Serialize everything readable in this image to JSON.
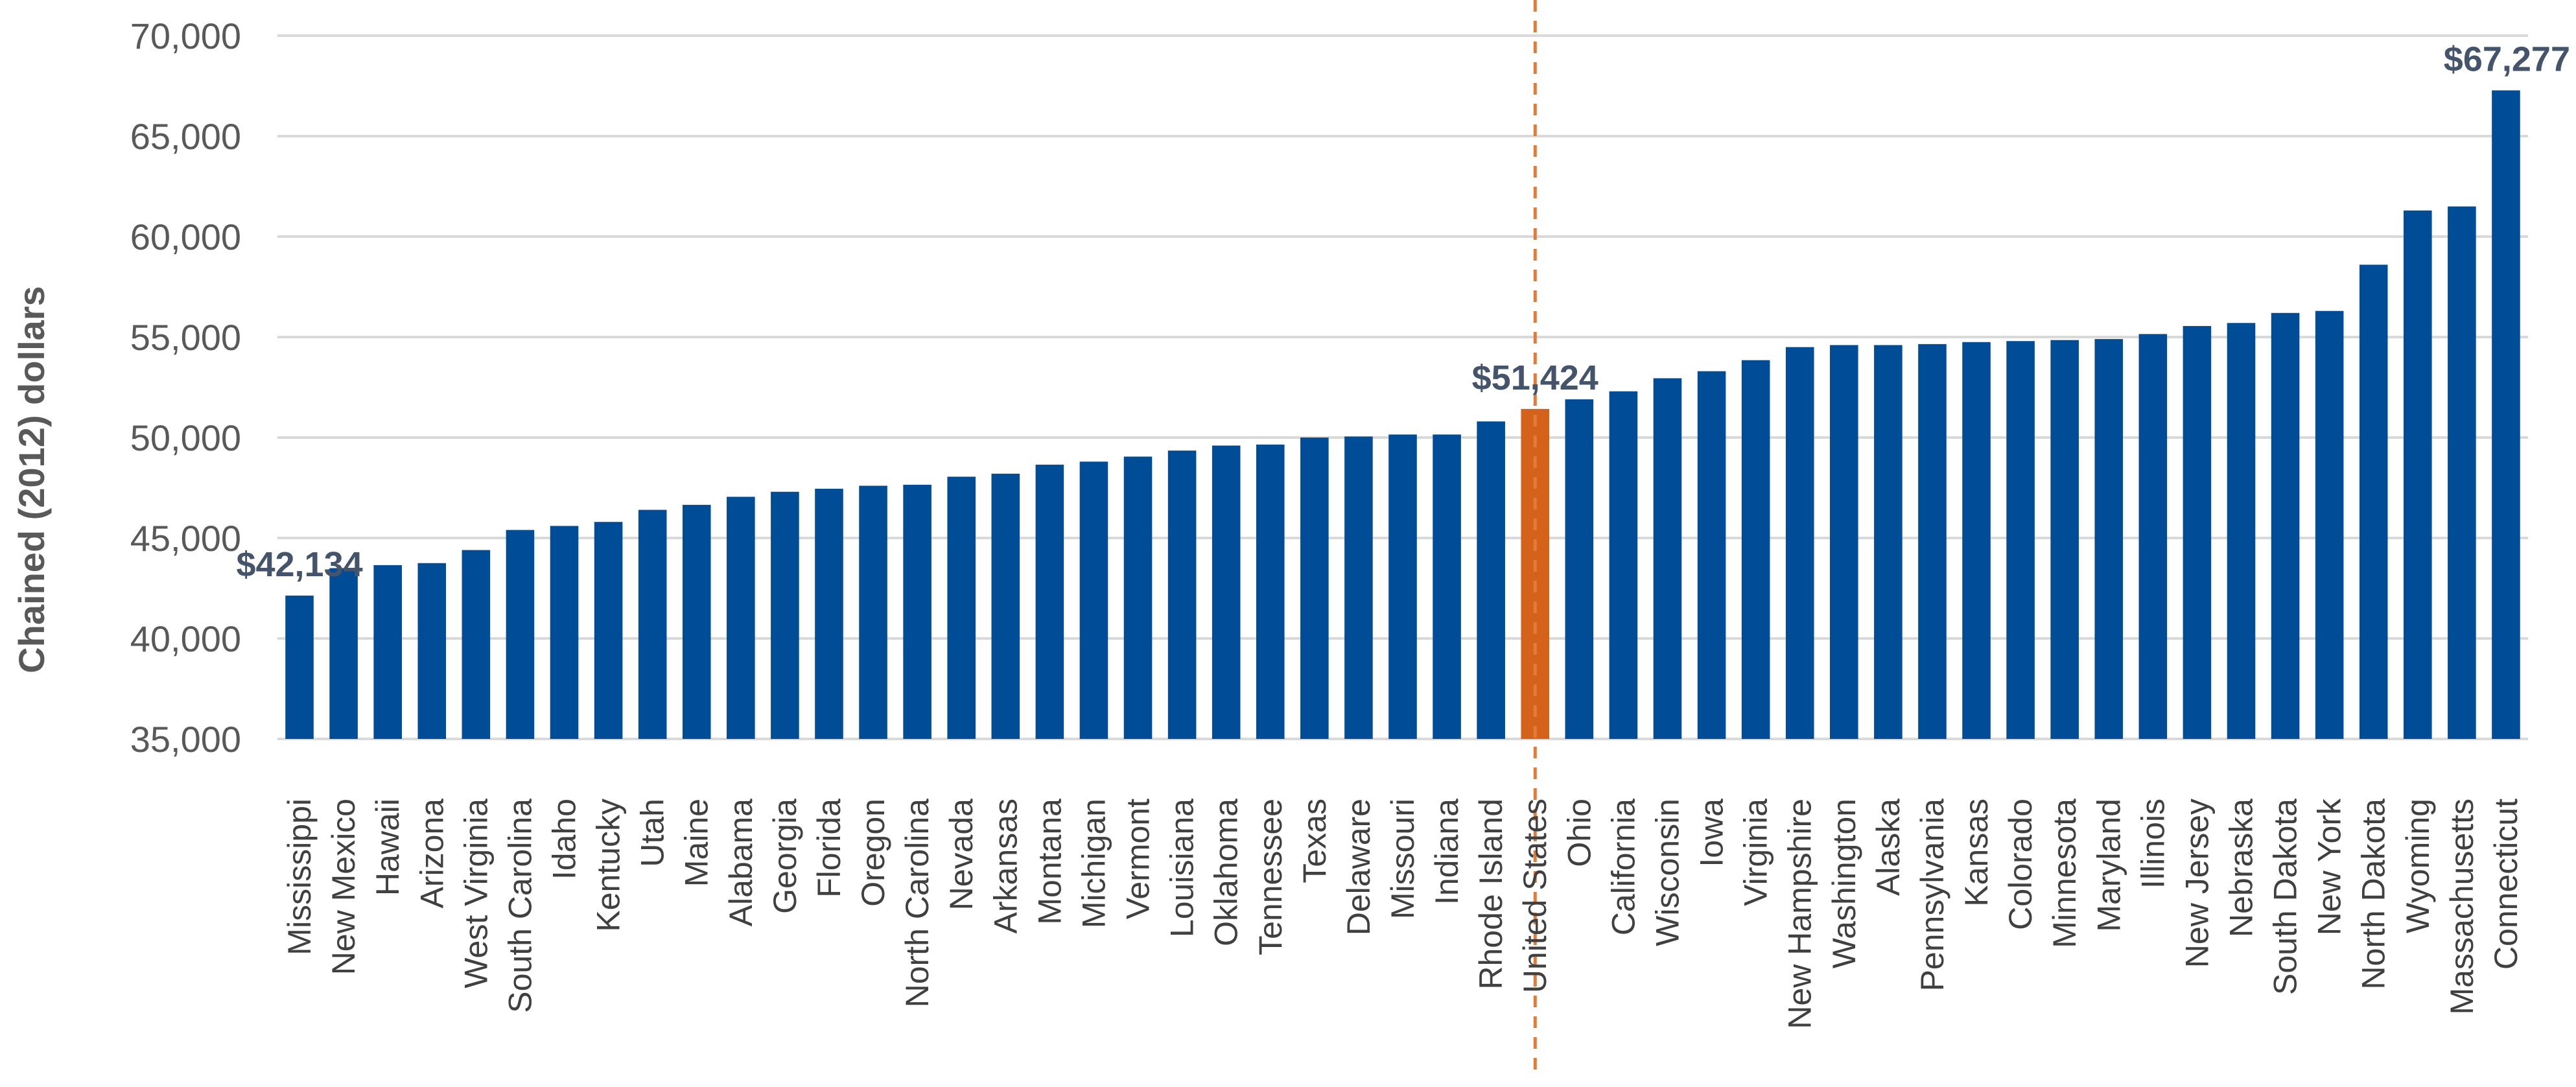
{
  "chart_data": {
    "type": "bar",
    "title": "",
    "xlabel": "",
    "ylabel": "Chained (2012) dollars",
    "ylim": [
      35000,
      70000
    ],
    "yticks": [
      35000,
      40000,
      45000,
      50000,
      55000,
      60000,
      65000,
      70000
    ],
    "ytick_labels": [
      "35,000",
      "40,000",
      "45,000",
      "50,000",
      "55,000",
      "60,000",
      "65,000",
      "70,000"
    ],
    "grid": true,
    "categories": [
      "Mississippi",
      "New Mexico",
      "Hawaii",
      "Arizona",
      "West Virginia",
      "South Carolina",
      "Idaho",
      "Kentucky",
      "Utah",
      "Maine",
      "Alabama",
      "Georgia",
      "Florida",
      "Oregon",
      "North Carolina",
      "Nevada",
      "Arkansas",
      "Montana",
      "Michigan",
      "Vermont",
      "Louisiana",
      "Oklahoma",
      "Tennessee",
      "Texas",
      "Delaware",
      "Missouri",
      "Indiana",
      "Rhode Island",
      "United States",
      "Ohio",
      "California",
      "Wisconsin",
      "Iowa",
      "Virginia",
      "New Hampshire",
      "Washington",
      "Alaska",
      "Pennsylvania",
      "Kansas",
      "Colorado",
      "Minnesota",
      "Maryland",
      "Illinois",
      "New Jersey",
      "Nebraska",
      "South Dakota",
      "New York",
      "North Dakota",
      "Wyoming",
      "Massachusetts",
      "Connecticut"
    ],
    "values": [
      42134,
      43500,
      43650,
      43750,
      44400,
      45400,
      45600,
      45800,
      46400,
      46650,
      47050,
      47300,
      47450,
      47600,
      47650,
      48050,
      48200,
      48650,
      48800,
      49050,
      49350,
      49600,
      49650,
      50000,
      50050,
      50150,
      50150,
      50800,
      51424,
      51900,
      52300,
      52950,
      53300,
      53850,
      54500,
      54600,
      54600,
      54650,
      54750,
      54800,
      54850,
      54900,
      55150,
      55550,
      55700,
      56200,
      56300,
      58600,
      61300,
      61500,
      67277
    ],
    "highlight_category": "United States",
    "colors": {
      "bar": "#004c97",
      "highlight_bar": "#d5621b",
      "reference_line": "#e07b39",
      "gridline": "#d9d9d9"
    },
    "annotations": [
      {
        "category": "Mississippi",
        "text": "$42,134"
      },
      {
        "category": "United States",
        "text": "$51,424"
      },
      {
        "category": "Connecticut",
        "text": "$67,277"
      }
    ]
  }
}
